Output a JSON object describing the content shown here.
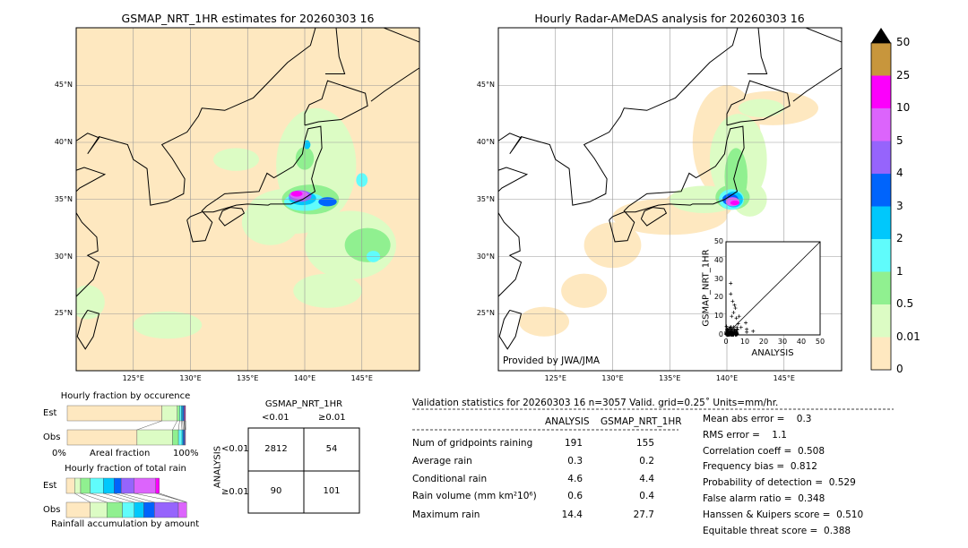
{
  "left_map": {
    "title": "GSMAP_NRT_1HR estimates for 20260303 16",
    "lon_ticks": [
      "125°E",
      "130°E",
      "135°E",
      "140°E",
      "145°E"
    ],
    "lat_ticks": [
      "45°N",
      "40°N",
      "35°N",
      "30°N",
      "25°N"
    ]
  },
  "right_map": {
    "title": "Hourly Radar-AMeDAS analysis for 20260303 16",
    "lon_ticks": [
      "125°E",
      "130°E",
      "135°E",
      "140°E",
      "145°E"
    ],
    "lat_ticks": [
      "45°N",
      "40°N",
      "35°N",
      "30°N",
      "25°N"
    ],
    "credit": "Provided by JWA/JMA"
  },
  "scatter": {
    "xlabel": "ANALYSIS",
    "ylabel": "GSMAP_NRT_1HR",
    "ticks": [
      "0",
      "10",
      "20",
      "30",
      "40",
      "50"
    ],
    "range": [
      0,
      50
    ],
    "outliers": [
      [
        2.5,
        27.7
      ],
      [
        2.5,
        22
      ],
      [
        3.5,
        18
      ],
      [
        4.5,
        16
      ],
      [
        5,
        14.4
      ],
      [
        4,
        12
      ],
      [
        3,
        10
      ],
      [
        7,
        10
      ],
      [
        5.5,
        9
      ],
      [
        10.5,
        6.5
      ],
      [
        11,
        3
      ],
      [
        14.4,
        2
      ],
      [
        11,
        1.5
      ],
      [
        8,
        4
      ],
      [
        6.5,
        6
      ]
    ]
  },
  "colorbar": {
    "labels": [
      "0",
      "0.01",
      "0.5",
      "1",
      "2",
      "3",
      "4",
      "5",
      "10",
      "25",
      "50"
    ],
    "colors": [
      "#fee8c0",
      "#dcfcc4",
      "#90f090",
      "#60fcfc",
      "#00c8fc",
      "#0064fc",
      "#9664fc",
      "#dc64fc",
      "#fc00fc",
      "#c8963c"
    ],
    "over_color": "#000000"
  },
  "occurrence_chart": {
    "title": "Hourly fraction by occurence",
    "rows": [
      {
        "label": "Est",
        "fractions": [
          0.8,
          0.13,
          0.02,
          0.015,
          0.01,
          0.01,
          0.005,
          0.005,
          0.005,
          0.0
        ]
      },
      {
        "label": "Obs",
        "fractions": [
          0.59,
          0.3,
          0.05,
          0.03,
          0.01,
          0.01,
          0.005,
          0.005,
          0.0,
          0.0
        ]
      }
    ],
    "xlabel_left": "0%",
    "xlabel_mid": "Areal fraction",
    "xlabel_right": "100%"
  },
  "rain_chart": {
    "title": "Hourly fraction of total rain",
    "rows": [
      {
        "label": "Est",
        "fractions": [
          0.07,
          0.05,
          0.08,
          0.11,
          0.09,
          0.06,
          0.11,
          0.18,
          0.03,
          0.0
        ]
      },
      {
        "label": "Obs",
        "fractions": [
          0.2,
          0.14,
          0.13,
          0.1,
          0.08,
          0.09,
          0.2,
          0.07,
          0.0,
          0.0
        ]
      }
    ],
    "xlabel": "Rainfall accumulation by amount"
  },
  "contingency": {
    "col_title": "GSMAP_NRT_1HR",
    "col_labels": [
      "<0.01",
      "≥0.01"
    ],
    "row_title": "ANALYSIS",
    "row_labels": [
      "<0.01",
      "≥0.01"
    ],
    "cells": [
      [
        "2812",
        "54"
      ],
      [
        "90",
        "101"
      ]
    ]
  },
  "stats": {
    "header": "Validation statistics for 20260303 16  n=3057 Valid. grid=0.25˚ Units=mm/hr.",
    "col_headers": [
      "ANALYSIS",
      "GSMAP_NRT_1HR"
    ],
    "rows": [
      {
        "label": "Num of gridpoints raining",
        "analysis": "191",
        "gsmap": "155"
      },
      {
        "label": "Average rain",
        "analysis": "0.3",
        "gsmap": "0.2"
      },
      {
        "label": "Conditional rain",
        "analysis": "4.6",
        "gsmap": "4.4"
      },
      {
        "label": "Rain volume (mm km²10⁶)",
        "analysis": "0.6",
        "gsmap": "0.4"
      },
      {
        "label": "Maximum rain",
        "analysis": "14.4",
        "gsmap": "27.7"
      }
    ],
    "scores": [
      "Mean abs error =    0.3",
      "RMS error =    1.1",
      "Correlation coeff =  0.508",
      "Frequency bias =  0.812",
      "Probability of detection =  0.529",
      "False alarm ratio =  0.348",
      "Hanssen & Kuipers score =  0.510",
      "Equitable threat score =  0.388"
    ]
  }
}
